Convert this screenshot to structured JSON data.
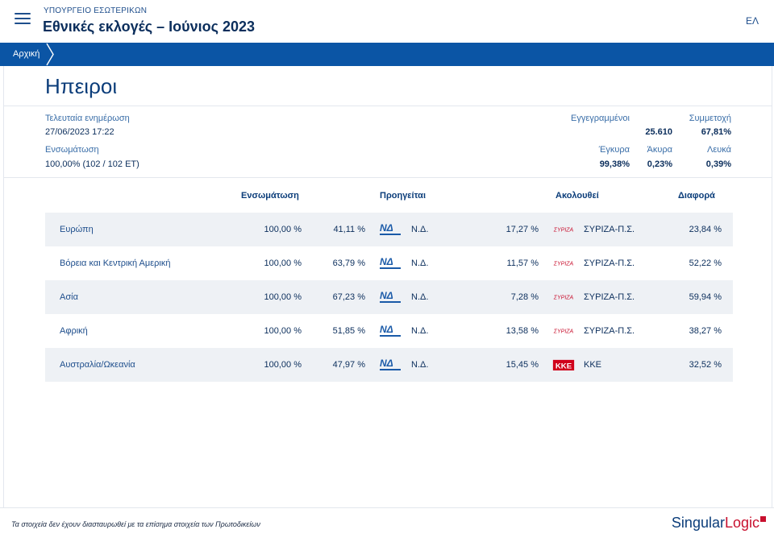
{
  "header": {
    "ministry": "ΥΠΟΥΡΓΕΙΟ ΕΣΩΤΕΡΙΚΩΝ",
    "title": "Εθνικές εκλογές – Ιούνιος 2023",
    "lang": "ΕΛ",
    "menu_icon": "hamburger-menu-icon"
  },
  "breadcrumb": {
    "home": "Αρχική"
  },
  "page": {
    "title": "Ηπειροι"
  },
  "summary": {
    "last_update_label": "Τελευταία ενημέρωση",
    "last_update_value": "27/06/2023 17:22",
    "integration_label": "Ενσωμάτωση",
    "integration_value": "100,00% (102 / 102 ΕΤ)",
    "registered_label": "Εγγεγραμμένοι",
    "registered_value": "25.610",
    "turnout_label": "Συμμετοχή",
    "turnout_value": "67,81%",
    "valid_label": "Έγκυρα",
    "valid_value": "99,38%",
    "invalid_label": "Άκυρα",
    "invalid_value": "0,23%",
    "blank_label": "Λευκά",
    "blank_value": "0,39%"
  },
  "table": {
    "headers": {
      "integration": "Ενσωμάτωση",
      "leading": "Προηγείται",
      "following": "Ακολουθεί",
      "difference": "Διαφορά"
    },
    "rows": [
      {
        "region": "Ευρώπη",
        "integration": "100,00 %",
        "lead_pct": "41,11 %",
        "lead_party": "Ν.Δ.",
        "lead_logo": "nd-logo",
        "follow_pct": "17,27 %",
        "follow_party": "ΣΥΡΙΖΑ-Π.Σ.",
        "follow_logo": "syriza-logo",
        "diff": "23,84 %"
      },
      {
        "region": "Βόρεια και Κεντρική Αμερική",
        "integration": "100,00 %",
        "lead_pct": "63,79 %",
        "lead_party": "Ν.Δ.",
        "lead_logo": "nd-logo",
        "follow_pct": "11,57 %",
        "follow_party": "ΣΥΡΙΖΑ-Π.Σ.",
        "follow_logo": "syriza-logo",
        "diff": "52,22 %"
      },
      {
        "region": "Ασία",
        "integration": "100,00 %",
        "lead_pct": "67,23 %",
        "lead_party": "Ν.Δ.",
        "lead_logo": "nd-logo",
        "follow_pct": "7,28 %",
        "follow_party": "ΣΥΡΙΖΑ-Π.Σ.",
        "follow_logo": "syriza-logo",
        "diff": "59,94 %"
      },
      {
        "region": "Αφρική",
        "integration": "100,00 %",
        "lead_pct": "51,85 %",
        "lead_party": "Ν.Δ.",
        "lead_logo": "nd-logo",
        "follow_pct": "13,58 %",
        "follow_party": "ΣΥΡΙΖΑ-Π.Σ.",
        "follow_logo": "syriza-logo",
        "diff": "38,27 %"
      },
      {
        "region": "Αυστραλία/Ωκεανία",
        "integration": "100,00 %",
        "lead_pct": "47,97 %",
        "lead_party": "Ν.Δ.",
        "lead_logo": "nd-logo",
        "follow_pct": "15,45 %",
        "follow_party": "ΚΚΕ",
        "follow_logo": "kke-logo",
        "diff": "32,52 %"
      }
    ]
  },
  "logos": {
    "nd_text": "ΝΔ",
    "syriza_text": "ΣΥΡΙΖΑ",
    "kke_text": "ΚΚΕ"
  },
  "footer": {
    "disclaimer": "Τα στοιχεία δεν έχουν διασταυρωθεί με τα επίσημα στοιχεία των Πρωτοδικείων",
    "brand_a": "Singular",
    "brand_b": "Logic"
  },
  "colors": {
    "primary": "#0b55a5",
    "title": "#0b2e5c",
    "row_alt": "#eef1f5",
    "nd_blue": "#1a5aa8",
    "syriza_red": "#c8102e",
    "kke_red": "#d0021b"
  }
}
